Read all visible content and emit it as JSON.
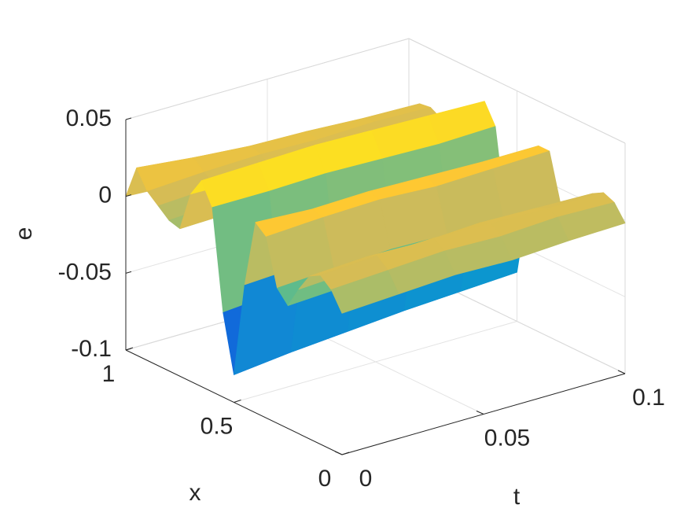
{
  "chart_data": {
    "type": "surface",
    "xlabel": "x",
    "ylabel": "t",
    "zlabel": "e",
    "x": [
      0,
      0.05,
      0.1,
      0.15,
      0.2,
      0.25,
      0.3,
      0.35,
      0.4,
      0.45,
      0.5,
      0.55,
      0.6,
      0.65,
      0.7,
      0.75,
      0.8,
      0.85,
      0.9,
      0.95,
      1
    ],
    "t": [
      0,
      0.02,
      0.04,
      0.06,
      0.08,
      0.1
    ],
    "z": [
      [
        -0.008,
        0.004,
        0.01,
        0.006,
        -0.006,
        -0.02,
        -0.012,
        0.018,
        0.024,
        -0.02,
        -0.082,
        -0.045,
        0.02,
        0.034,
        0.022,
        -0.004,
        -0.002,
        0.004,
        0.01,
        0.022,
        0
      ],
      [
        -0.006,
        0.006,
        0.012,
        0.008,
        -0.004,
        -0.018,
        -0.01,
        0.02,
        0.022,
        -0.018,
        -0.078,
        -0.042,
        0.02,
        0.035,
        0.021,
        -0.003,
        0,
        0.006,
        0.012,
        0.018,
        -0.002
      ],
      [
        -0.004,
        0.008,
        0.013,
        0.007,
        -0.006,
        -0.02,
        -0.008,
        0.021,
        0.023,
        -0.02,
        -0.075,
        -0.04,
        0.021,
        0.036,
        0.02,
        -0.004,
        0.001,
        0.007,
        0.013,
        0.015,
        -0.003
      ],
      [
        -0.005,
        0.007,
        0.012,
        0.009,
        -0.005,
        -0.019,
        -0.009,
        0.019,
        0.022,
        -0.019,
        -0.072,
        -0.038,
        0.02,
        0.035,
        0.021,
        -0.005,
        0.002,
        0.008,
        0.012,
        0.014,
        -0.002
      ],
      [
        -0.003,
        0.009,
        0.011,
        0.008,
        -0.004,
        -0.018,
        -0.01,
        0.02,
        0.021,
        -0.018,
        -0.07,
        -0.037,
        0.019,
        0.034,
        0.02,
        -0.004,
        0.001,
        0.007,
        0.013,
        0.012,
        -0.001
      ],
      [
        -0.002,
        0.008,
        0.011,
        0.007,
        -0.005,
        -0.019,
        -0.009,
        0.021,
        0.021,
        -0.019,
        -0.068,
        -0.036,
        0.02,
        0.033,
        0.019,
        -0.003,
        0.002,
        0.008,
        0.012,
        0.011,
        0
      ]
    ],
    "xlim": [
      0,
      1
    ],
    "ylim": [
      0,
      0.1
    ],
    "zlim": [
      -0.1,
      0.05
    ],
    "xticks": [
      0,
      0.5,
      1
    ],
    "yticks": [
      0,
      0.05,
      0.1
    ],
    "zticks": [
      -0.1,
      -0.05,
      0,
      0.05
    ],
    "grid": true,
    "colormap": [
      "#352a87",
      "#0f5cdd",
      "#1481d6",
      "#06a4ca",
      "#2eb7a4",
      "#87bf77",
      "#d1bb59",
      "#fec832",
      "#f9fb0e"
    ]
  }
}
